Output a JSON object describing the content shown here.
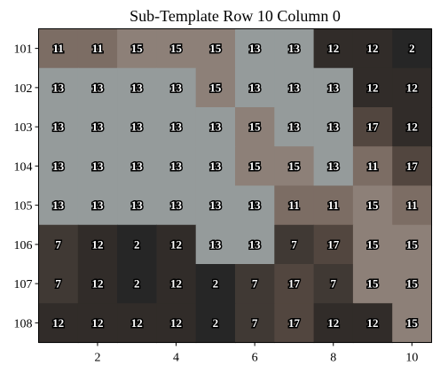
{
  "chart_data": {
    "type": "heatmap",
    "title": "Sub-Template Row 10 Column 0",
    "xlabel": "",
    "ylabel": "",
    "xlim": [
      0.5,
      10.5
    ],
    "x_ticks": [
      2,
      4,
      6,
      8,
      10
    ],
    "rows": [
      "101",
      "102",
      "103",
      "104",
      "105",
      "106",
      "107",
      "108"
    ],
    "columns": [
      1,
      2,
      3,
      4,
      5,
      6,
      7,
      8,
      9,
      10
    ],
    "grid": false,
    "values": [
      [
        11,
        11,
        15,
        15,
        15,
        13,
        13,
        12,
        12,
        2
      ],
      [
        13,
        13,
        13,
        13,
        15,
        13,
        13,
        13,
        12,
        12
      ],
      [
        13,
        13,
        13,
        13,
        13,
        15,
        13,
        13,
        17,
        12
      ],
      [
        13,
        13,
        13,
        13,
        13,
        15,
        15,
        13,
        11,
        17
      ],
      [
        13,
        13,
        13,
        13,
        13,
        13,
        11,
        11,
        15,
        11
      ],
      [
        7,
        12,
        2,
        12,
        13,
        13,
        7,
        17,
        15,
        15
      ],
      [
        7,
        12,
        2,
        12,
        2,
        7,
        17,
        7,
        15,
        15
      ],
      [
        12,
        12,
        12,
        12,
        2,
        7,
        17,
        12,
        12,
        15
      ]
    ],
    "value_colors": {
      "2": "#262626",
      "7": "#403934",
      "11": "#7c6d64",
      "12": "#312c29",
      "13": "#959b9b",
      "15": "#8d8078",
      "17": "#52463f"
    }
  }
}
